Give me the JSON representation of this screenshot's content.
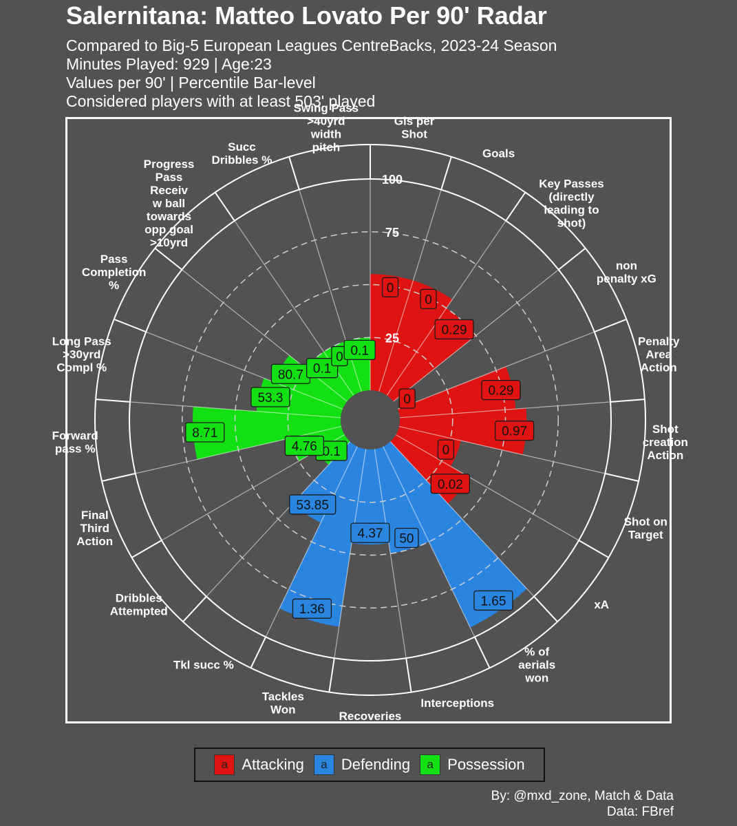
{
  "header": {
    "title": "Salernitana: Matteo Lovato Per 90' Radar",
    "subtitle_lines": [
      "Compared to Big-5 European Leagues CentreBacks, 2023-24 Season",
      "Minutes Played: 929 | Age:23",
      "Values per 90' | Percentile Bar-level",
      "Considered players with at least 503' played"
    ]
  },
  "legend": {
    "items": [
      {
        "label": "Attacking",
        "key_text": "a",
        "color": "#e01313"
      },
      {
        "label": "Defending",
        "key_text": "a",
        "color": "#2a85e0"
      },
      {
        "label": "Possession",
        "key_text": "a",
        "color": "#13e013"
      }
    ]
  },
  "credits": {
    "line1": "By: @mxd_zone, Match & Data",
    "line2": "Data: FBref"
  },
  "chart_data": {
    "type": "bar",
    "subtype": "polar-radar",
    "title": "Salernitana: Matteo Lovato Per 90' Radar",
    "radial_axis": {
      "range": [
        0,
        100
      ],
      "ticks": [
        25,
        50,
        75,
        100
      ],
      "dashed": [
        25,
        50,
        75
      ],
      "unit": "percentile"
    },
    "colors": {
      "Attacking": "#e01313",
      "Defending": "#2a85e0",
      "Possession": "#13e013",
      "background": "#525252",
      "gridlines": "#ffffff"
    },
    "categories": [
      {
        "label": [
          "Gls per",
          "Shot"
        ],
        "group": "Attacking",
        "percentile": 55,
        "value_label": "0"
      },
      {
        "label": [
          "Goals"
        ],
        "group": "Attacking",
        "percentile": 55,
        "value_label": "0"
      },
      {
        "label": [
          "Key Passes",
          "(directly",
          "leading to",
          "shot)"
        ],
        "group": "Attacking",
        "percentile": 50,
        "value_label": "0.29"
      },
      {
        "label": [
          "non",
          "penalty xG"
        ],
        "group": "Attacking",
        "percentile": 0,
        "value_label": "0"
      },
      {
        "label": [
          "Penalty",
          "Area",
          "Action"
        ],
        "group": "Attacking",
        "percentile": 55,
        "value_label": "0.29"
      },
      {
        "label": [
          "Shot",
          "creation",
          "Action"
        ],
        "group": "Attacking",
        "percentile": 60,
        "value_label": "0.97"
      },
      {
        "label": [
          "Shot on",
          "Target"
        ],
        "group": "Attacking",
        "percentile": 30,
        "value_label": "0"
      },
      {
        "label": [
          "xA"
        ],
        "group": "Attacking",
        "percentile": 40,
        "value_label": "0.02"
      },
      {
        "label": [
          "% of",
          "aerials",
          "won"
        ],
        "group": "Defending",
        "percentile": 95,
        "value_label": "1.65"
      },
      {
        "label": [
          "Interceptions"
        ],
        "group": "Defending",
        "percentile": 50,
        "value_label": "50"
      },
      {
        "label": [
          "Recoveries"
        ],
        "group": "Defending",
        "percentile": 45,
        "value_label": "4.37"
      },
      {
        "label": [
          "Tackles",
          "Won"
        ],
        "group": "Defending",
        "percentile": 85,
        "value_label": "1.36"
      },
      {
        "label": [
          "Tkl succ %"
        ],
        "group": "Defending",
        "percentile": 40,
        "value_label": "53.85"
      },
      {
        "label": [
          "Dribbles",
          "Attempted"
        ],
        "group": "Possession",
        "percentile": 15,
        "value_label": "0.1"
      },
      {
        "label": [
          "Final",
          "Third",
          "Action"
        ],
        "group": "Possession",
        "percentile": 25,
        "value_label": "4.76"
      },
      {
        "label": [
          "Forward",
          "pass %"
        ],
        "group": "Possession",
        "percentile": 70,
        "value_label": "8.71"
      },
      {
        "label": [
          "Long Pass",
          ">30yrd",
          "Compl %"
        ],
        "group": "Possession",
        "percentile": 40,
        "value_label": "53.3"
      },
      {
        "label": [
          "Pass",
          "Completion",
          "%"
        ],
        "group": "Possession",
        "percentile": 35,
        "value_label": "80.7"
      },
      {
        "label": [
          "Progress",
          "Pass",
          "Receiv",
          "w ball",
          "towards",
          "opp goal",
          ">10yrd"
        ],
        "group": "Possession",
        "percentile": 25,
        "value_label": "0.1"
      },
      {
        "label": [
          "Succ",
          "Dribbles %"
        ],
        "group": "Possession",
        "percentile": 25,
        "value_label": "0"
      },
      {
        "label": [
          "Swing Pass",
          ">40yrd",
          "width",
          "pitch"
        ],
        "group": "Possession",
        "percentile": 25,
        "value_label": "0.1"
      }
    ]
  }
}
